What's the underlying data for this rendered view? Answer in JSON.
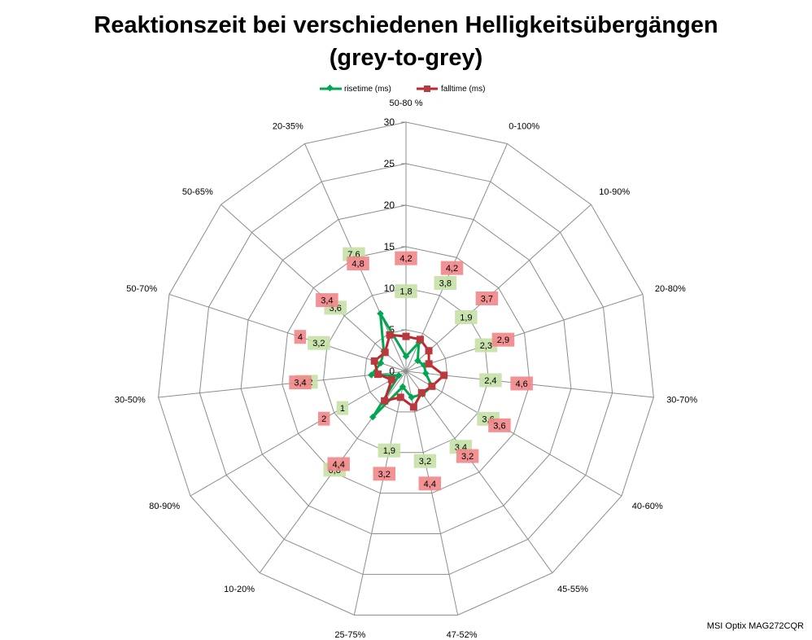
{
  "chart_data": {
    "type": "radar",
    "title_lines": [
      "Reaktionszeit bei verschiedenen Helligkeitsübergängen",
      "(grey-to-grey)"
    ],
    "categories": [
      "50-80 %",
      "0-100%",
      "10-90%",
      "20-80%",
      "30-70%",
      "40-60%",
      "45-55%",
      "47-52%",
      "25-75%",
      "10-20%",
      "80-90%",
      "30-50%",
      "50-70%",
      "50-65%",
      "20-35%"
    ],
    "r_ticks": [
      "0",
      "5",
      "10",
      "15",
      "20",
      "25",
      "30"
    ],
    "rmax": 30,
    "series": [
      {
        "name": "risetime (ms)",
        "color": "#00a650",
        "label_bg": "#c4e0a6",
        "marker": "diamond",
        "values": [
          1.8,
          3.8,
          1.9,
          2.3,
          2.4,
          3.6,
          3.4,
          3.2,
          1.9,
          6.8,
          1.0,
          4.2,
          3.2,
          3.6,
          7.6
        ],
        "labels": [
          "1,8",
          "3,8",
          "1,9",
          "2,3",
          "2,4",
          "3,6",
          "3,4",
          "3,2",
          "1,9",
          "6,8",
          "1",
          "4,2",
          "3,2",
          "3,6",
          "7,6"
        ]
      },
      {
        "name": "falltime (ms)",
        "color": "#c0272d",
        "label_bg": "#f2868a",
        "marker": "square",
        "values": [
          4.2,
          4.2,
          3.7,
          2.9,
          4.6,
          3.6,
          3.2,
          4.4,
          3.2,
          4.4,
          2.0,
          3.4,
          4.0,
          3.4,
          4.8
        ],
        "labels": [
          "4,2",
          "4,2",
          "3,7",
          "2,9",
          "4,6",
          "3,6",
          "3,2",
          "4,4",
          "3,2",
          "4,4",
          "2",
          "3,4",
          "4",
          "3,4",
          "4,8"
        ]
      }
    ],
    "legend_position": "top",
    "grid": true
  },
  "caption": "MSI Optix MAG272CQR"
}
